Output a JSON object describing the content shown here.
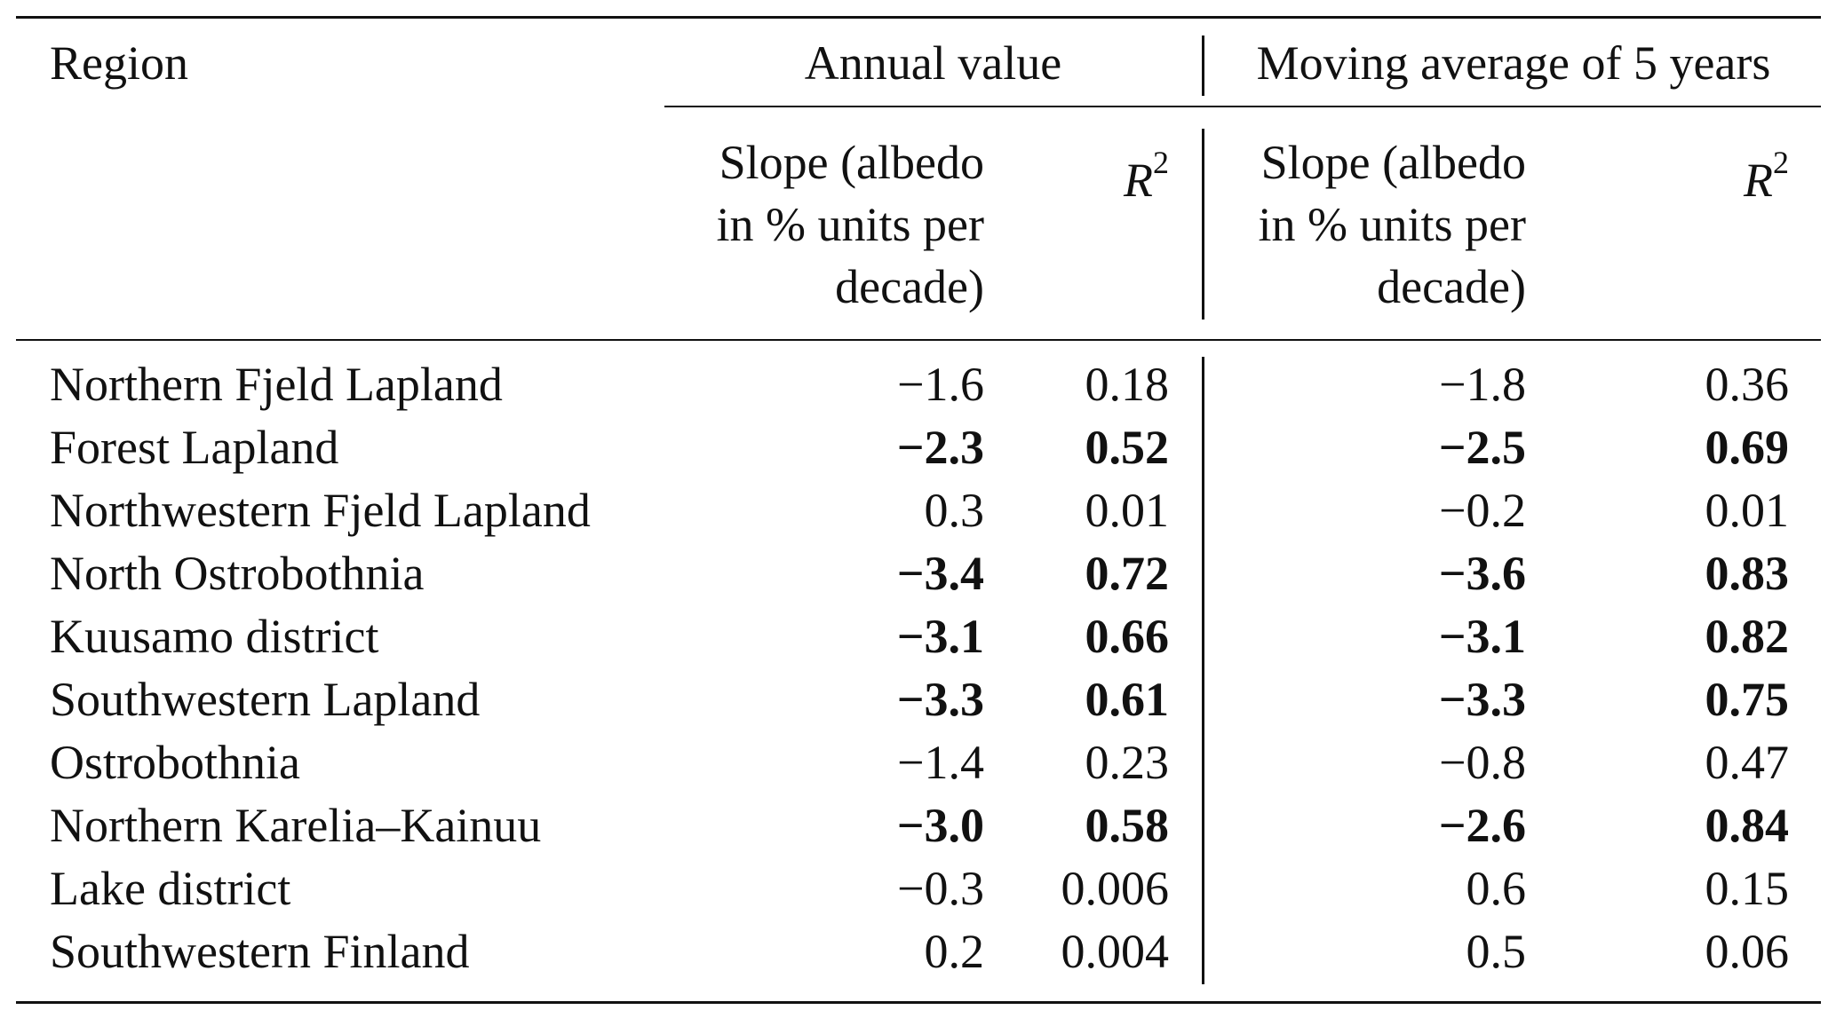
{
  "header": {
    "region": "Region",
    "group_annual": "Annual value",
    "group_moving": "Moving average of 5 years",
    "slope_lines": [
      "Slope (albedo",
      "in % units per",
      "decade)"
    ],
    "r2_base": "R",
    "r2_exp": "2"
  },
  "rows": [
    {
      "region": "Northern Fjeld Lapland",
      "annual_slope": "−1.6",
      "annual_r2": "0.18",
      "moving_slope": "−1.8",
      "moving_r2": "0.36",
      "bold": false
    },
    {
      "region": "Forest Lapland",
      "annual_slope": "−2.3",
      "annual_r2": "0.52",
      "moving_slope": "−2.5",
      "moving_r2": "0.69",
      "bold": true
    },
    {
      "region": "Northwestern Fjeld Lapland",
      "annual_slope": "0.3",
      "annual_r2": "0.01",
      "moving_slope": "−0.2",
      "moving_r2": "0.01",
      "bold": false
    },
    {
      "region": "North Ostrobothnia",
      "annual_slope": "−3.4",
      "annual_r2": "0.72",
      "moving_slope": "−3.6",
      "moving_r2": "0.83",
      "bold": true
    },
    {
      "region": "Kuusamo district",
      "annual_slope": "−3.1",
      "annual_r2": "0.66",
      "moving_slope": "−3.1",
      "moving_r2": "0.82",
      "bold": true
    },
    {
      "region": "Southwestern Lapland",
      "annual_slope": "−3.3",
      "annual_r2": "0.61",
      "moving_slope": "−3.3",
      "moving_r2": "0.75",
      "bold": true
    },
    {
      "region": "Ostrobothnia",
      "annual_slope": "−1.4",
      "annual_r2": "0.23",
      "moving_slope": "−0.8",
      "moving_r2": "0.47",
      "bold": false
    },
    {
      "region": "Northern Karelia–Kainuu",
      "annual_slope": "−3.0",
      "annual_r2": "0.58",
      "moving_slope": "−2.6",
      "moving_r2": "0.84",
      "bold": true
    },
    {
      "region": "Lake district",
      "annual_slope": "−0.3",
      "annual_r2": "0.006",
      "moving_slope": "0.6",
      "moving_r2": "0.15",
      "bold": false
    },
    {
      "region": "Southwestern Finland",
      "annual_slope": "0.2",
      "annual_r2": "0.004",
      "moving_slope": "0.5",
      "moving_r2": "0.06",
      "bold": false
    }
  ]
}
